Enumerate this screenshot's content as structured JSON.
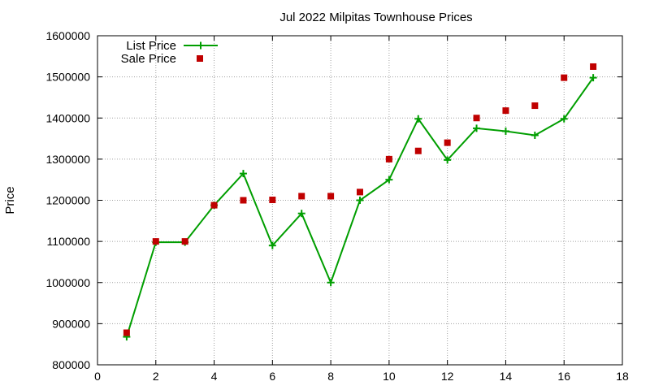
{
  "chart_data": {
    "type": "line",
    "title": "Jul 2022 Milpitas Townhouse Prices",
    "xlabel": "",
    "ylabel": "Price",
    "xlim": [
      0,
      18
    ],
    "ylim": [
      800000,
      1600000
    ],
    "xticks": [
      "0",
      "2",
      "4",
      "6",
      "8",
      "10",
      "12",
      "14",
      "16",
      "18"
    ],
    "yticks": [
      "800000",
      "900000",
      "1000000",
      "1100000",
      "1200000",
      "1300000",
      "1400000",
      "1500000",
      "1600000"
    ],
    "grid": true,
    "legend_position": "top-left",
    "series": [
      {
        "name": "List Price",
        "style": "line-with-plus-markers",
        "color": "#009e00",
        "x": [
          1,
          2,
          3,
          4,
          5,
          6,
          7,
          8,
          9,
          10,
          11,
          12,
          13,
          14,
          15,
          16,
          17
        ],
        "y": [
          868000,
          1098000,
          1098000,
          1188000,
          1265000,
          1090000,
          1168000,
          1000000,
          1200000,
          1250000,
          1398000,
          1298000,
          1375000,
          1368000,
          1358000,
          1398000,
          1498000
        ]
      },
      {
        "name": "Sale Price",
        "style": "square-markers",
        "color": "#c00000",
        "x": [
          1,
          2,
          3,
          4,
          5,
          6,
          7,
          8,
          9,
          10,
          11,
          12,
          13,
          14,
          15,
          16,
          17
        ],
        "y": [
          878000,
          1100000,
          1100000,
          1188000,
          1200000,
          1201000,
          1210000,
          1210000,
          1220000,
          1300000,
          1320000,
          1340000,
          1400000,
          1418000,
          1430000,
          1498000,
          1525000
        ]
      }
    ]
  }
}
